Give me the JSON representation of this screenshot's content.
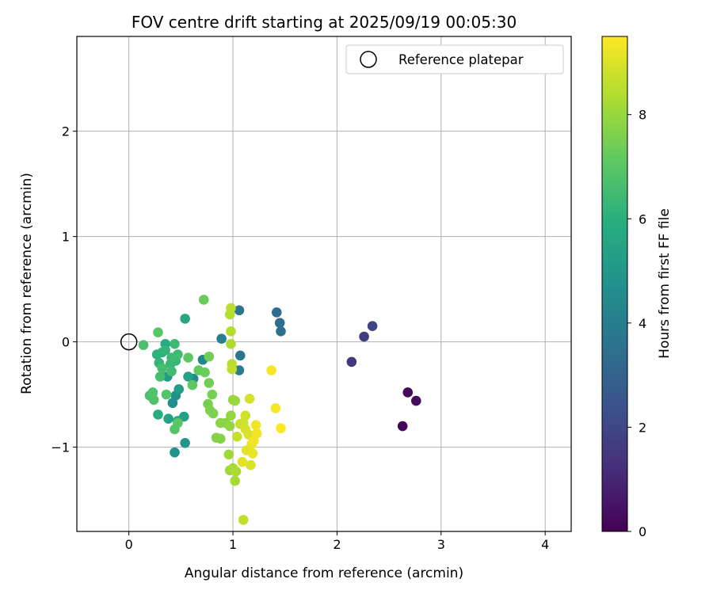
{
  "chart_data": {
    "type": "scatter",
    "title": "FOV centre drift starting at 2025/09/19 00:05:30",
    "xlabel": "Angular distance from reference (arcmin)",
    "ylabel": "Rotation from reference (arcmin)",
    "xlim": [
      -0.5,
      4.25
    ],
    "ylim": [
      -1.8,
      2.9
    ],
    "xticks": [
      0,
      1,
      2,
      3,
      4
    ],
    "yticks": [
      -1,
      0,
      1,
      2
    ],
    "xtick_labels": [
      "0",
      "1",
      "2",
      "3",
      "4"
    ],
    "ytick_labels": [
      "−1",
      "0",
      "1",
      "2"
    ],
    "grid": true,
    "legend": {
      "position": "top-right",
      "label": "Reference platepar"
    },
    "reference_point": {
      "x": 0,
      "y": 0
    },
    "colorbar": {
      "label": "Hours from first FF file",
      "range": [
        0,
        9.5
      ],
      "ticks": [
        0,
        2,
        4,
        6,
        8
      ],
      "tick_labels": [
        "0",
        "2",
        "4",
        "6",
        "8"
      ],
      "colormap": "viridis"
    },
    "points": [
      {
        "x": 2.63,
        "y": -0.8,
        "h": 0.1
      },
      {
        "x": 2.68,
        "y": -0.48,
        "h": 0.2
      },
      {
        "x": 2.76,
        "y": -0.56,
        "h": 0.3
      },
      {
        "x": 2.14,
        "y": -0.19,
        "h": 1.5
      },
      {
        "x": 2.26,
        "y": 0.05,
        "h": 1.7
      },
      {
        "x": 2.34,
        "y": 0.15,
        "h": 1.9
      },
      {
        "x": 1.42,
        "y": 0.28,
        "h": 3.3
      },
      {
        "x": 1.45,
        "y": 0.18,
        "h": 3.4
      },
      {
        "x": 1.46,
        "y": 0.1,
        "h": 3.5
      },
      {
        "x": 1.06,
        "y": 0.3,
        "h": 3.7
      },
      {
        "x": 1.07,
        "y": -0.13,
        "h": 3.8
      },
      {
        "x": 1.06,
        "y": -0.27,
        "h": 3.9
      },
      {
        "x": 0.89,
        "y": 0.03,
        "h": 4.1
      },
      {
        "x": 0.71,
        "y": -0.17,
        "h": 4.3
      },
      {
        "x": 0.62,
        "y": -0.35,
        "h": 4.5
      },
      {
        "x": 0.42,
        "y": -0.58,
        "h": 4.6
      },
      {
        "x": 0.45,
        "y": -0.51,
        "h": 4.7
      },
      {
        "x": 0.44,
        "y": -1.05,
        "h": 4.8
      },
      {
        "x": 0.54,
        "y": -0.96,
        "h": 5.0
      },
      {
        "x": 0.37,
        "y": -0.33,
        "h": 5.1
      },
      {
        "x": 0.48,
        "y": -0.45,
        "h": 5.2
      },
      {
        "x": 0.53,
        "y": -0.71,
        "h": 5.3
      },
      {
        "x": 0.57,
        "y": -0.33,
        "h": 5.4
      },
      {
        "x": 0.38,
        "y": -0.73,
        "h": 5.5
      },
      {
        "x": 0.47,
        "y": -0.75,
        "h": 5.6
      },
      {
        "x": 0.54,
        "y": 0.22,
        "h": 5.7
      },
      {
        "x": 0.35,
        "y": -0.02,
        "h": 5.8
      },
      {
        "x": 0.28,
        "y": -0.69,
        "h": 5.9
      },
      {
        "x": 0.32,
        "y": -0.1,
        "h": 6.0
      },
      {
        "x": 0.27,
        "y": -0.12,
        "h": 6.1
      },
      {
        "x": 0.35,
        "y": -0.08,
        "h": 6.2
      },
      {
        "x": 0.29,
        "y": -0.2,
        "h": 6.2
      },
      {
        "x": 0.4,
        "y": -0.21,
        "h": 6.3
      },
      {
        "x": 0.45,
        "y": -0.18,
        "h": 6.3
      },
      {
        "x": 0.41,
        "y": -0.15,
        "h": 6.4
      },
      {
        "x": 0.44,
        "y": -0.02,
        "h": 6.4
      },
      {
        "x": 0.47,
        "y": -0.12,
        "h": 6.5
      },
      {
        "x": 0.41,
        "y": -0.28,
        "h": 6.5
      },
      {
        "x": 0.3,
        "y": -0.33,
        "h": 6.6
      },
      {
        "x": 0.32,
        "y": -0.25,
        "h": 6.6
      },
      {
        "x": 0.14,
        "y": -0.03,
        "h": 6.7
      },
      {
        "x": 0.2,
        "y": -0.51,
        "h": 6.7
      },
      {
        "x": 0.23,
        "y": -0.48,
        "h": 6.8
      },
      {
        "x": 0.24,
        "y": -0.55,
        "h": 6.8
      },
      {
        "x": 0.36,
        "y": -0.5,
        "h": 6.9
      },
      {
        "x": 0.44,
        "y": -0.83,
        "h": 6.9
      },
      {
        "x": 0.47,
        "y": -0.77,
        "h": 7.0
      },
      {
        "x": 0.28,
        "y": 0.09,
        "h": 7.0
      },
      {
        "x": 0.57,
        "y": -0.15,
        "h": 7.1
      },
      {
        "x": 0.61,
        "y": -0.41,
        "h": 7.1
      },
      {
        "x": 0.67,
        "y": -0.27,
        "h": 7.2
      },
      {
        "x": 0.72,
        "y": 0.4,
        "h": 7.3
      },
      {
        "x": 0.73,
        "y": -0.29,
        "h": 7.3
      },
      {
        "x": 0.77,
        "y": -0.39,
        "h": 7.4
      },
      {
        "x": 0.77,
        "y": -0.14,
        "h": 7.4
      },
      {
        "x": 0.8,
        "y": -0.5,
        "h": 7.5
      },
      {
        "x": 0.76,
        "y": -0.59,
        "h": 7.5
      },
      {
        "x": 0.78,
        "y": -0.65,
        "h": 7.6
      },
      {
        "x": 0.81,
        "y": -0.68,
        "h": 7.6
      },
      {
        "x": 0.84,
        "y": -0.91,
        "h": 7.7
      },
      {
        "x": 0.88,
        "y": -0.92,
        "h": 7.7
      },
      {
        "x": 0.88,
        "y": -0.77,
        "h": 7.8
      },
      {
        "x": 0.93,
        "y": -0.77,
        "h": 7.8
      },
      {
        "x": 0.97,
        "y": -0.8,
        "h": 7.9
      },
      {
        "x": 0.98,
        "y": -0.7,
        "h": 7.9
      },
      {
        "x": 1.0,
        "y": -0.55,
        "h": 8.0
      },
      {
        "x": 1.02,
        "y": -0.56,
        "h": 8.0
      },
      {
        "x": 0.96,
        "y": -1.07,
        "h": 8.1
      },
      {
        "x": 0.97,
        "y": -1.22,
        "h": 8.1
      },
      {
        "x": 1.0,
        "y": -1.2,
        "h": 8.2
      },
      {
        "x": 1.02,
        "y": -1.32,
        "h": 8.2
      },
      {
        "x": 1.03,
        "y": -1.23,
        "h": 8.3
      },
      {
        "x": 0.98,
        "y": -0.02,
        "h": 8.3
      },
      {
        "x": 0.98,
        "y": 0.1,
        "h": 8.4
      },
      {
        "x": 0.97,
        "y": 0.26,
        "h": 8.4
      },
      {
        "x": 0.98,
        "y": 0.32,
        "h": 8.5
      },
      {
        "x": 0.99,
        "y": -0.21,
        "h": 8.5
      },
      {
        "x": 0.99,
        "y": -0.26,
        "h": 8.6
      },
      {
        "x": 1.1,
        "y": -1.69,
        "h": 8.6
      },
      {
        "x": 1.04,
        "y": -0.9,
        "h": 8.7
      },
      {
        "x": 1.07,
        "y": -0.78,
        "h": 8.7
      },
      {
        "x": 1.1,
        "y": -0.77,
        "h": 8.8
      },
      {
        "x": 1.12,
        "y": -0.7,
        "h": 8.8
      },
      {
        "x": 1.16,
        "y": -0.54,
        "h": 8.9
      },
      {
        "x": 1.12,
        "y": -0.83,
        "h": 8.9
      },
      {
        "x": 1.15,
        "y": -0.88,
        "h": 9.0
      },
      {
        "x": 1.17,
        "y": -1.17,
        "h": 9.0
      },
      {
        "x": 1.09,
        "y": -1.14,
        "h": 9.1
      },
      {
        "x": 1.13,
        "y": -1.03,
        "h": 9.1
      },
      {
        "x": 1.19,
        "y": -1.06,
        "h": 9.2
      },
      {
        "x": 1.18,
        "y": -0.97,
        "h": 9.2
      },
      {
        "x": 1.2,
        "y": -0.94,
        "h": 9.3
      },
      {
        "x": 1.22,
        "y": -0.79,
        "h": 9.3
      },
      {
        "x": 1.23,
        "y": -0.87,
        "h": 9.3
      },
      {
        "x": 1.37,
        "y": -0.27,
        "h": 9.4
      },
      {
        "x": 1.41,
        "y": -0.63,
        "h": 9.4
      },
      {
        "x": 1.46,
        "y": -0.82,
        "h": 9.5
      }
    ]
  }
}
